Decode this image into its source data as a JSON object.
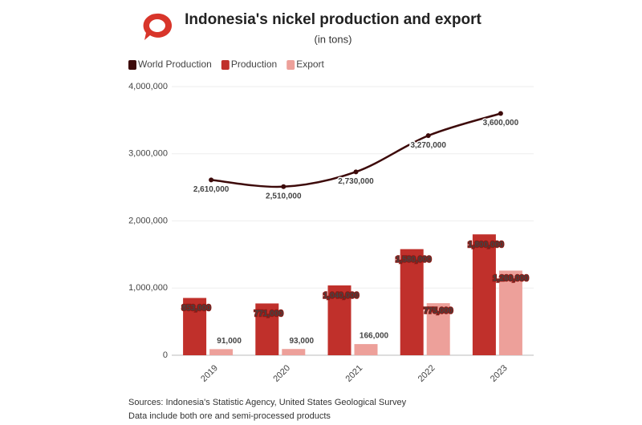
{
  "chart_data": {
    "type": "bar",
    "title": "Indonesia's nickel production and export",
    "subtitle": "(in tons)",
    "categories": [
      "2019",
      "2020",
      "2021",
      "2022",
      "2023"
    ],
    "series": [
      {
        "name": "World Production",
        "type": "line",
        "color": "#3d0a0a",
        "values": [
          2610000,
          2510000,
          2730000,
          3270000,
          3600000
        ],
        "value_labels": [
          "2,610,000",
          "2,510,000",
          "2,730,000",
          "3,270,000",
          "3,600,000"
        ]
      },
      {
        "name": "Production",
        "color": "#c0302b",
        "values": [
          853000,
          771000,
          1040000,
          1580000,
          1800000
        ],
        "value_labels": [
          "853,000",
          "771,000",
          "1,040,000",
          "1,580,000",
          "1,800,000"
        ]
      },
      {
        "name": "Export",
        "color": "#eda09a",
        "values": [
          91000,
          93000,
          166000,
          775000,
          1260000
        ],
        "value_labels": [
          "91,000",
          "93,000",
          "166,000",
          "775,000",
          "1,260,000"
        ]
      }
    ],
    "ylim": [
      0,
      4000000
    ],
    "yticks": [
      0,
      {
        "value": 1000000,
        "label": "1,000,000"
      },
      {
        "value": 2000000,
        "label": "2,000,000"
      },
      {
        "value": 3000000,
        "label": "3,000,000"
      },
      {
        "value": 4000000,
        "label": "4,000,000"
      }
    ],
    "grid": true,
    "legend": "top-left",
    "notes": [
      "Sources: Indonesia's Statistic Agency, United States Geological Survey",
      "Data include both ore and semi-processed products"
    ]
  }
}
